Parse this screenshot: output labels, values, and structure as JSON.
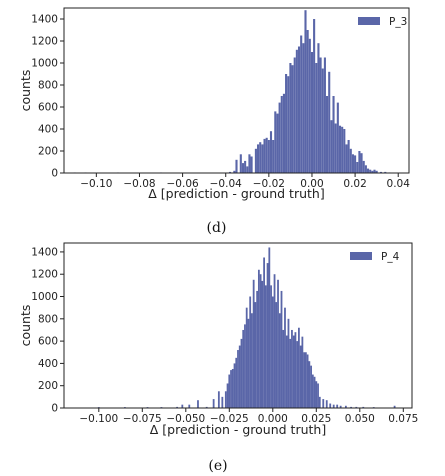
{
  "chart_data": [
    {
      "type": "bar",
      "panel_caption": "(d)",
      "xlabel": "Δ [prediction - ground truth]",
      "ylabel": "counts",
      "xlim": [
        -0.115,
        0.045
      ],
      "ylim": [
        0,
        1500
      ],
      "xticks": [
        -0.1,
        -0.08,
        -0.06,
        -0.04,
        -0.02,
        0.0,
        0.02,
        0.04
      ],
      "xtick_labels": [
        "−0.10",
        "−0.08",
        "−0.06",
        "−0.04",
        "−0.02",
        "0.00",
        "0.02",
        "0.04"
      ],
      "yticks": [
        0,
        200,
        400,
        600,
        800,
        1000,
        1200,
        1400
      ],
      "ytick_labels": [
        "0",
        "200",
        "400",
        "600",
        "800",
        "1000",
        "1200",
        "1400"
      ],
      "legend": {
        "position": "upper right",
        "entries": [
          "P_3"
        ]
      },
      "color": "#5a66a8",
      "series": [
        {
          "name": "P_3",
          "x": [
            -0.11,
            -0.105,
            -0.09,
            -0.07,
            -0.038,
            -0.036,
            -0.035,
            -0.033,
            -0.032,
            -0.031,
            -0.03,
            -0.029,
            -0.028,
            -0.026,
            -0.025,
            -0.024,
            -0.023,
            -0.022,
            -0.021,
            -0.02,
            -0.019,
            -0.018,
            -0.017,
            -0.016,
            -0.015,
            -0.014,
            -0.013,
            -0.012,
            -0.011,
            -0.01,
            -0.009,
            -0.008,
            -0.007,
            -0.006,
            -0.005,
            -0.004,
            -0.003,
            -0.002,
            -0.001,
            0.0,
            0.001,
            0.002,
            0.003,
            0.004,
            0.005,
            0.006,
            0.007,
            0.008,
            0.009,
            0.01,
            0.011,
            0.012,
            0.013,
            0.014,
            0.015,
            0.016,
            0.017,
            0.018,
            0.019,
            0.02,
            0.021,
            0.022,
            0.023,
            0.024,
            0.025,
            0.026,
            0.027,
            0.028,
            0.029,
            0.03,
            0.032,
            0.034,
            0.036
          ],
          "values": [
            5,
            5,
            5,
            5,
            10,
            20,
            120,
            170,
            90,
            110,
            60,
            170,
            150,
            220,
            260,
            280,
            260,
            310,
            320,
            300,
            380,
            300,
            560,
            540,
            640,
            700,
            720,
            900,
            880,
            1000,
            980,
            1050,
            1120,
            1150,
            1250,
            1180,
            1480,
            1300,
            1220,
            1100,
            1400,
            1000,
            1180,
            1050,
            950,
            1050,
            700,
            920,
            480,
            700,
            450,
            640,
            430,
            420,
            400,
            260,
            300,
            220,
            170,
            160,
            100,
            200,
            180,
            110,
            70,
            40,
            30,
            20,
            30,
            20,
            10,
            10,
            5
          ]
        }
      ]
    },
    {
      "type": "bar",
      "panel_caption": "(e)",
      "xlabel": "Δ [prediction - ground truth]",
      "ylabel": "counts",
      "xlim": [
        -0.12,
        0.08
      ],
      "ylim": [
        0,
        1480
      ],
      "xticks": [
        -0.1,
        -0.075,
        -0.05,
        -0.025,
        0.0,
        0.025,
        0.05,
        0.075
      ],
      "xtick_labels": [
        "−0.100",
        "−0.075",
        "−0.050",
        "−0.025",
        "0.000",
        "0.025",
        "0.050",
        "0.075"
      ],
      "yticks": [
        0,
        200,
        400,
        600,
        800,
        1000,
        1200,
        1400
      ],
      "ytick_labels": [
        "0",
        "200",
        "400",
        "600",
        "800",
        "1000",
        "1200",
        "1400"
      ],
      "legend": {
        "position": "upper right",
        "entries": [
          "P_4"
        ]
      },
      "color": "#5a66a8",
      "series": [
        {
          "name": "P_4",
          "x": [
            -0.1,
            -0.085,
            -0.072,
            -0.064,
            -0.055,
            -0.052,
            -0.048,
            -0.043,
            -0.038,
            -0.034,
            -0.031,
            -0.029,
            -0.027,
            -0.026,
            -0.025,
            -0.024,
            -0.023,
            -0.022,
            -0.021,
            -0.02,
            -0.019,
            -0.018,
            -0.017,
            -0.016,
            -0.015,
            -0.014,
            -0.013,
            -0.012,
            -0.011,
            -0.01,
            -0.009,
            -0.008,
            -0.007,
            -0.006,
            -0.005,
            -0.004,
            -0.003,
            -0.002,
            -0.001,
            0.0,
            0.001,
            0.002,
            0.003,
            0.004,
            0.005,
            0.006,
            0.007,
            0.008,
            0.009,
            0.01,
            0.011,
            0.012,
            0.013,
            0.014,
            0.015,
            0.016,
            0.017,
            0.018,
            0.019,
            0.02,
            0.021,
            0.022,
            0.023,
            0.024,
            0.025,
            0.026,
            0.027,
            0.029,
            0.031,
            0.033,
            0.035,
            0.037,
            0.039,
            0.042,
            0.045,
            0.048,
            0.052,
            0.058,
            0.07
          ],
          "values": [
            8,
            8,
            8,
            8,
            10,
            30,
            30,
            70,
            10,
            80,
            150,
            100,
            150,
            220,
            300,
            340,
            350,
            400,
            450,
            520,
            560,
            620,
            700,
            750,
            900,
            800,
            1000,
            850,
            1150,
            950,
            1050,
            1240,
            1200,
            1140,
            1350,
            1100,
            1300,
            1440,
            1100,
            1000,
            1200,
            950,
            1150,
            850,
            1050,
            700,
            900,
            650,
            800,
            620,
            700,
            650,
            680,
            600,
            720,
            560,
            640,
            500,
            500,
            480,
            420,
            380,
            300,
            280,
            240,
            220,
            100,
            80,
            70,
            40,
            30,
            30,
            20,
            20,
            10,
            10,
            10,
            8,
            20
          ]
        }
      ]
    }
  ]
}
